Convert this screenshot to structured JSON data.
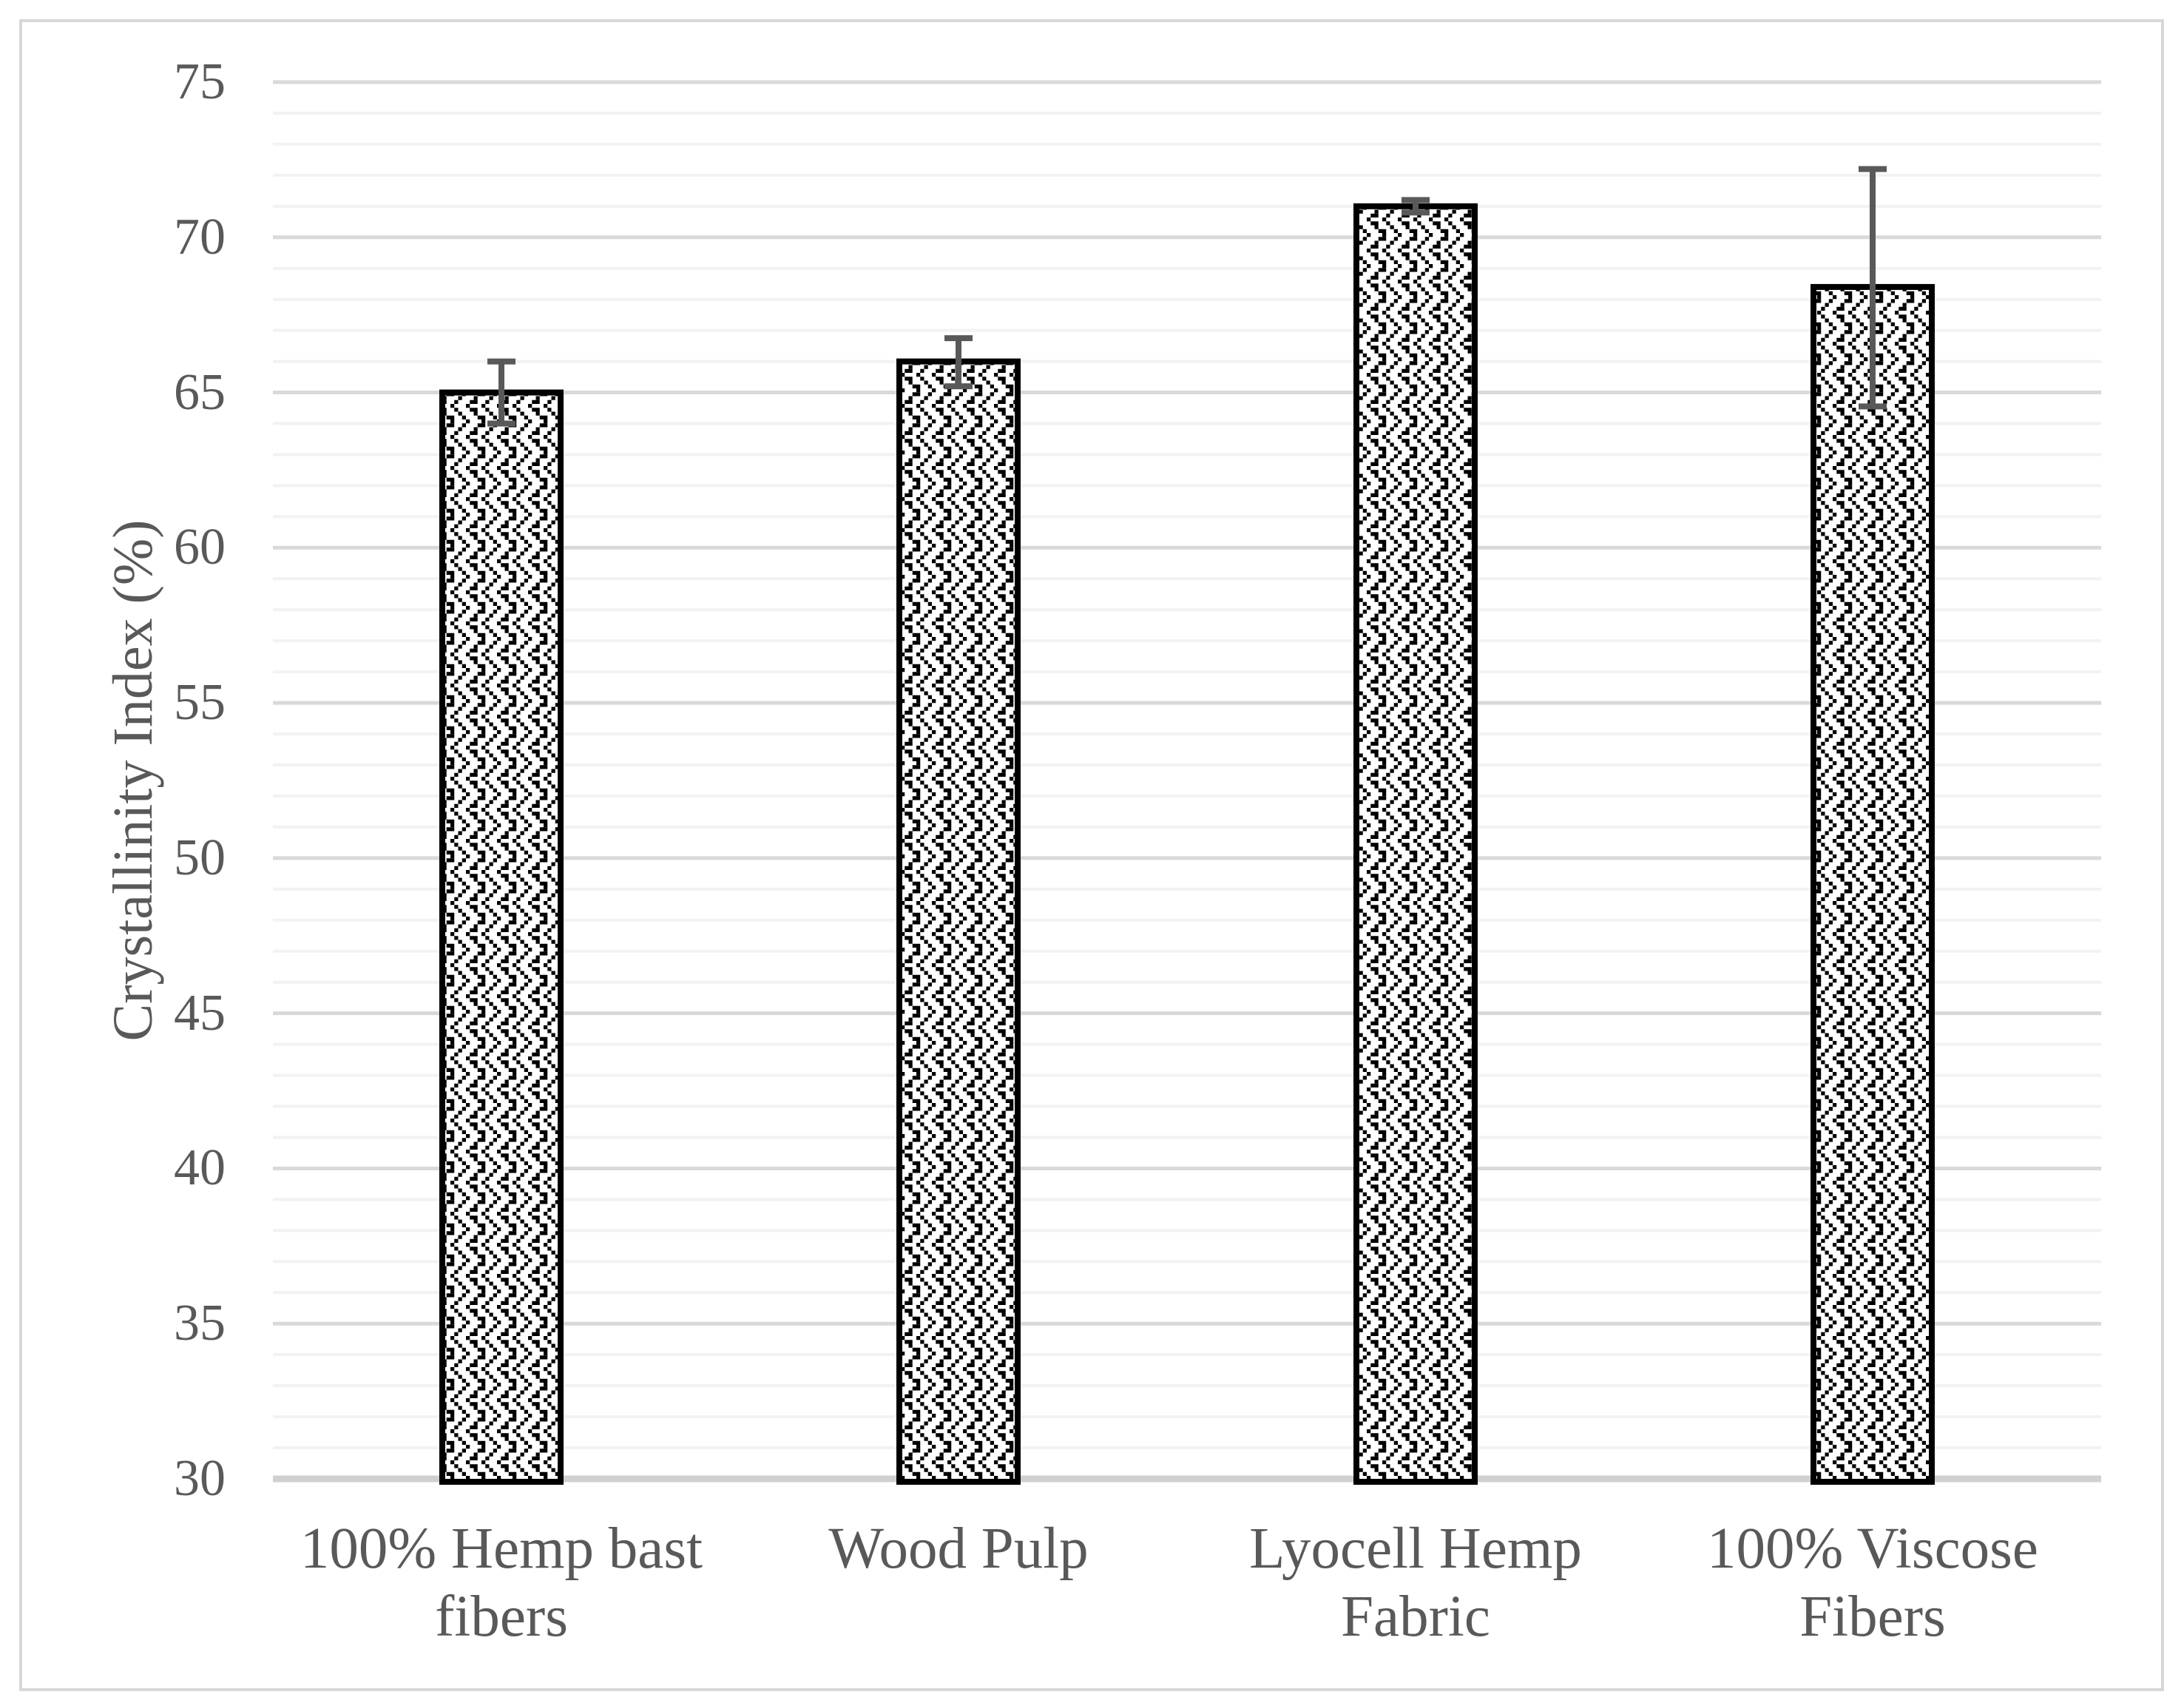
{
  "chart_data": {
    "type": "bar",
    "title": "",
    "ylabel": "Crystallinity Index (%)",
    "xlabel": "",
    "categories": [
      "100% Hemp bast fibers",
      "Wood Pulp",
      "Lyocell Hemp Fabric",
      "100% Viscose Fibers"
    ],
    "category_lines": [
      [
        "100% Hemp bast",
        "fibers"
      ],
      [
        "Wood Pulp"
      ],
      [
        "Lyocell Hemp",
        "Fabric"
      ],
      [
        "100% Viscose",
        "Fibers"
      ]
    ],
    "values": [
      65.0,
      66.0,
      71.0,
      68.4
    ],
    "error_plus": [
      1.0,
      0.75,
      0.2,
      3.8
    ],
    "error_minus": [
      1.0,
      0.8,
      0.2,
      3.85
    ],
    "ylim": [
      30,
      75
    ],
    "y_major_step": 5,
    "y_minor_step": 1,
    "y_tick_labels": [
      "75",
      "70",
      "65",
      "60",
      "55",
      "50",
      "45",
      "40",
      "35",
      "30"
    ],
    "grid": "horizontal major gridlines every 5 units, minor gridlines every 1 unit",
    "legend": "none",
    "bar_style": "white bars filled with black zigzag herringbone dot pattern, thick black border",
    "error_bars": "gray capped error bars on all four bars",
    "colors": {
      "background": "#ffffff",
      "text": "#595959",
      "bar_border": "#000000",
      "bar_fill_bg": "#ffffff",
      "bar_pattern": "#000000",
      "error_bar": "#595959",
      "gridline_major": "#d9d9d9",
      "gridline_minor": "#f2f2f2",
      "axis_line": "#d0d0d0",
      "frame_border": "#d7d7d7"
    }
  }
}
